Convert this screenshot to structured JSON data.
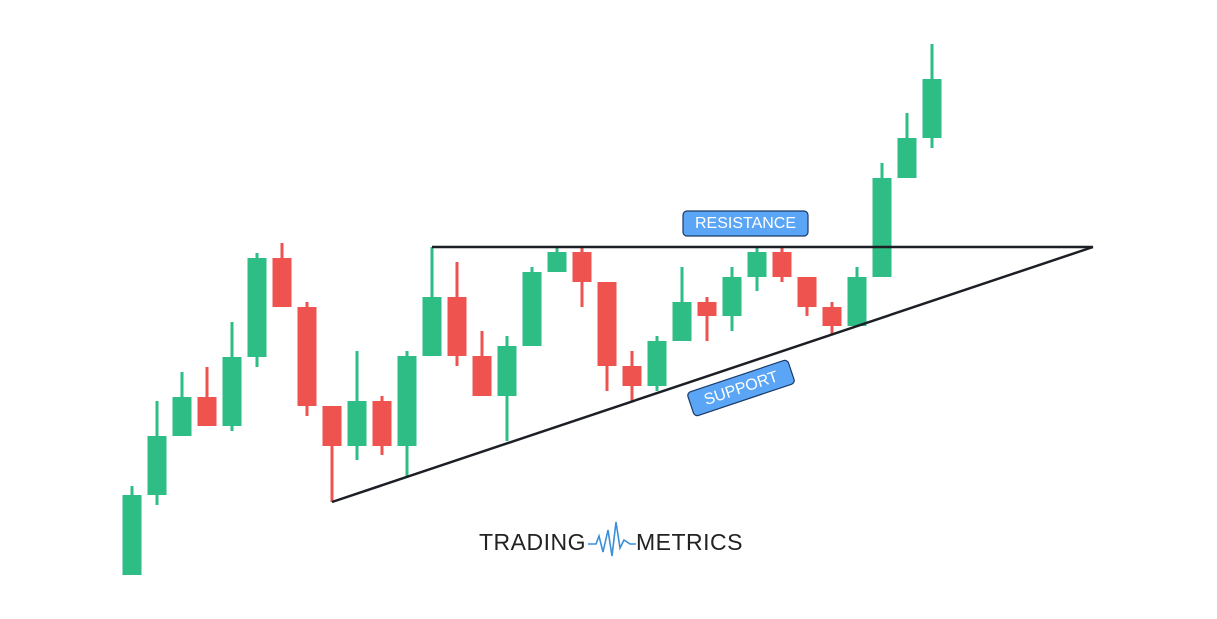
{
  "chart_data": {
    "type": "candlestick",
    "open": [
      25,
      105,
      164,
      203,
      174,
      243,
      342,
      293,
      194,
      154,
      199,
      154,
      244,
      303,
      244,
      204,
      254,
      328,
      348,
      318,
      234,
      214,
      259,
      298,
      284,
      323,
      348,
      323,
      293,
      274,
      323,
      422,
      462
    ],
    "high": [
      114,
      199,
      228,
      233,
      278,
      347,
      357,
      298,
      194,
      249,
      204,
      249,
      353,
      338,
      269,
      264,
      333,
      353,
      353,
      318,
      249,
      264,
      333,
      303,
      333,
      353,
      353,
      323,
      298,
      333,
      437,
      487,
      556
    ],
    "low": [
      25,
      95,
      164,
      174,
      169,
      233,
      293,
      184,
      98,
      140,
      145,
      124,
      244,
      234,
      204,
      159,
      254,
      328,
      293,
      209,
      199,
      209,
      259,
      259,
      269,
      309,
      318,
      284,
      266,
      274,
      323,
      422,
      452
    ],
    "close": [
      105,
      164,
      203,
      174,
      243,
      342,
      293,
      194,
      154,
      199,
      154,
      244,
      303,
      244,
      204,
      254,
      328,
      348,
      318,
      234,
      214,
      259,
      298,
      284,
      323,
      348,
      323,
      293,
      274,
      323,
      422,
      462,
      521
    ],
    "up_color": "#2ebd85",
    "down_color": "#ef5350",
    "ylim": [
      0,
      600
    ],
    "annotations": [
      "RESISTANCE",
      "SUPPORT"
    ]
  },
  "logo": {
    "left": "TRADING",
    "right": "METRICS"
  }
}
